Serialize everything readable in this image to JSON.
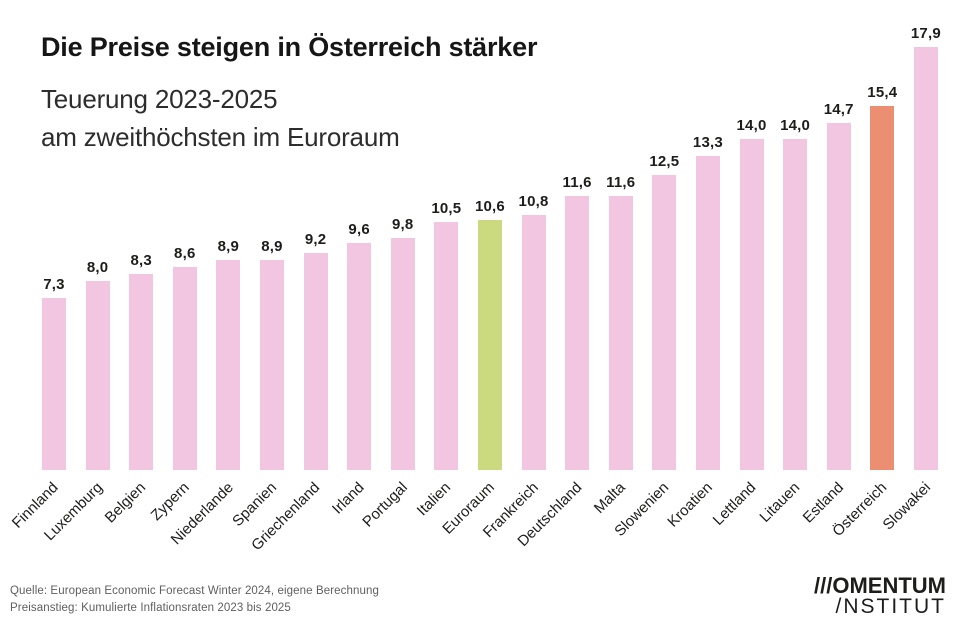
{
  "header": {
    "title": "Die Preise steigen in Österreich stärker",
    "subtitle_line1": "Teuerung 2023-2025",
    "subtitle_line2": "am zweithöchsten im Euroraum"
  },
  "chart_data": {
    "type": "bar",
    "title": "Die Preise steigen in Österreich stärker",
    "subtitle": "Teuerung 2023-2025 am zweithöchsten im Euroraum",
    "categories": [
      "Finnland",
      "Luxemburg",
      "Belgien",
      "Zypern",
      "Niederlande",
      "Spanien",
      "Griechenland",
      "Irland",
      "Portugal",
      "Italien",
      "Euroraum",
      "Frankreich",
      "Deutschland",
      "Malta",
      "Slowenien",
      "Kroatien",
      "Lettland",
      "Litauen",
      "Estland",
      "Österreich",
      "Slowakei"
    ],
    "values": [
      7.3,
      8.0,
      8.3,
      8.6,
      8.9,
      8.9,
      9.2,
      9.6,
      9.8,
      10.5,
      10.6,
      10.8,
      11.6,
      11.6,
      12.5,
      13.3,
      14.0,
      14.0,
      14.7,
      15.4,
      17.9
    ],
    "value_labels": [
      "7,3",
      "8,0",
      "8,3",
      "8,6",
      "8,9",
      "8,9",
      "9,2",
      "9,6",
      "9,8",
      "10,5",
      "10,6",
      "10,8",
      "11,6",
      "11,6",
      "12,5",
      "13,3",
      "14,0",
      "14,0",
      "14,7",
      "15,4",
      "17,9"
    ],
    "ylim": [
      0,
      17.9
    ],
    "grid": false,
    "legend": false,
    "xlabel": "",
    "ylabel": "",
    "colors": {
      "default": "#f2c6e1",
      "euroraum_highlight": "#ccda7f",
      "oesterreich_highlight": "#ec8e71"
    },
    "highlights": [
      {
        "category": "Euroraum",
        "color": "#ccda7f"
      },
      {
        "category": "Österreich",
        "color": "#ec8e71"
      }
    ]
  },
  "footer": {
    "source_line1": "Quelle: European Economic Forecast Winter 2024, eigene Berechnung",
    "source_line2": "Preisanstieg: Kumulierte Inflationsraten 2023 bis 2025"
  },
  "logo": {
    "line1": "///OMENTUM",
    "line2": "/NSTITUT"
  }
}
